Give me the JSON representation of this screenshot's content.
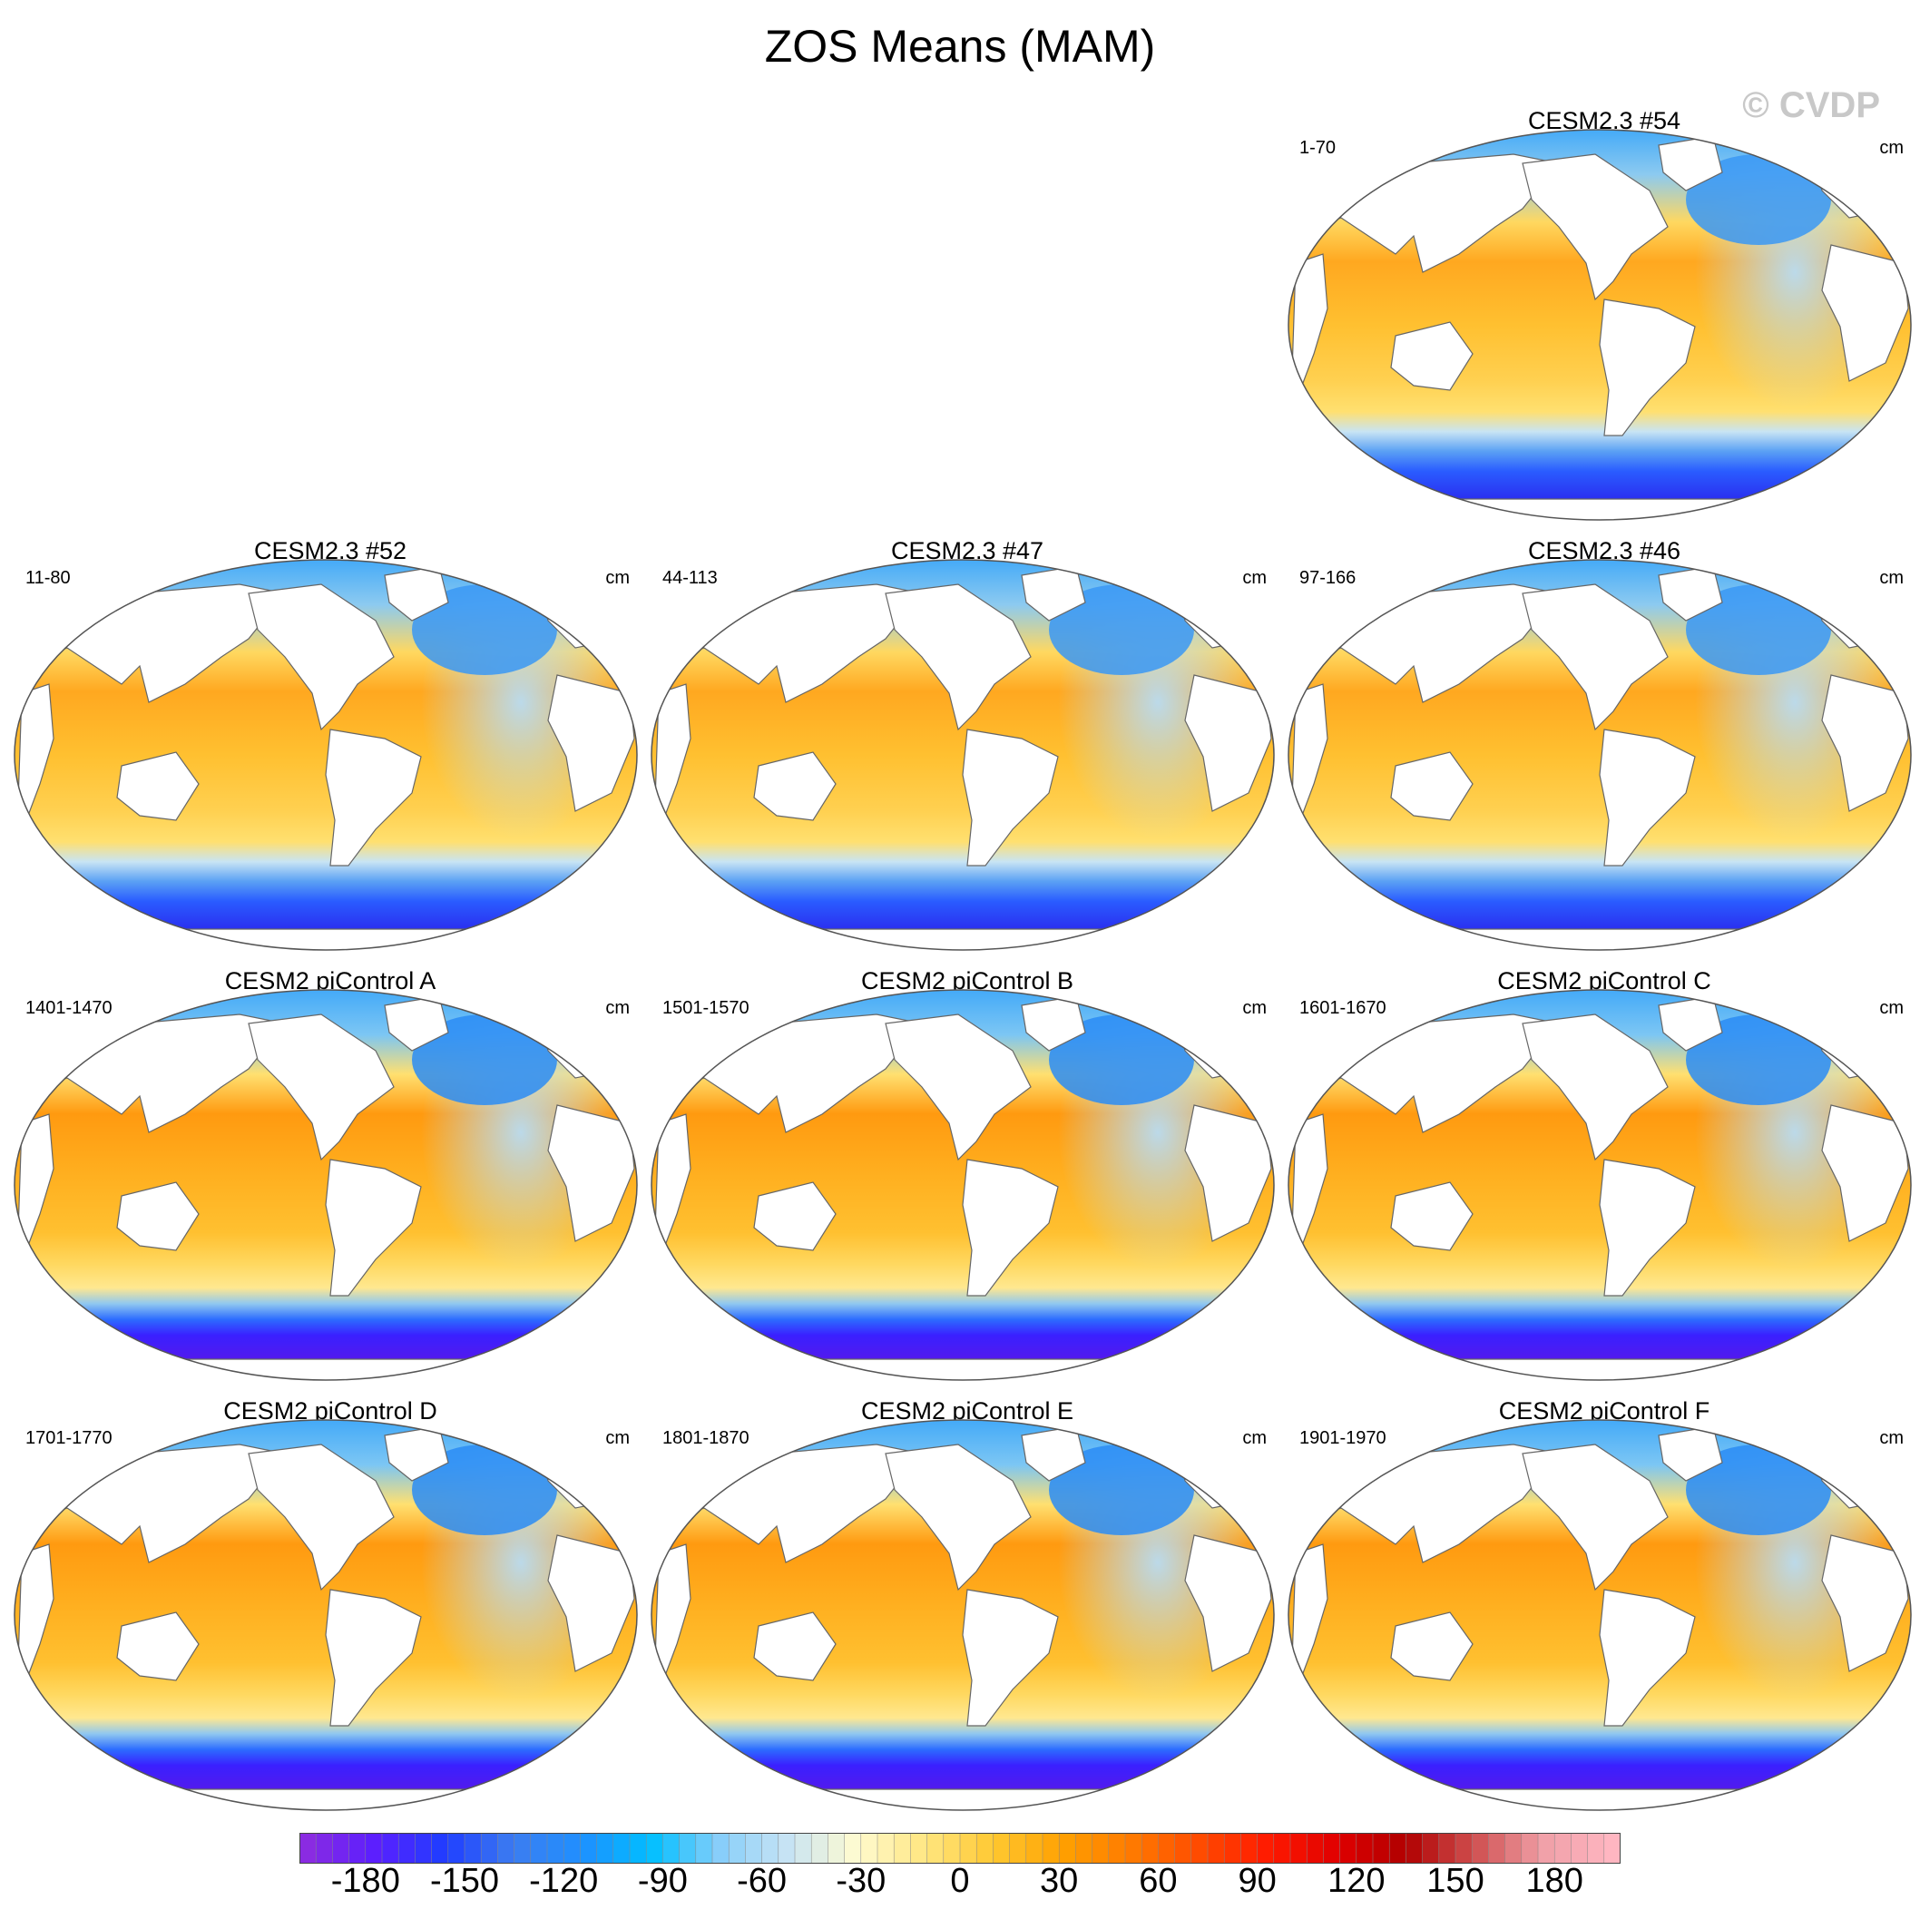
{
  "title": "ZOS Means (MAM)",
  "watermark": "© CVDP",
  "panels": [
    {
      "name": "CESM2.3 #54",
      "period": "1-70",
      "units": "cm",
      "row": 0,
      "col": 2,
      "style": "cesm23"
    },
    {
      "name": "CESM2.3 #52",
      "period": "11-80",
      "units": "cm",
      "row": 1,
      "col": 0,
      "style": "cesm23"
    },
    {
      "name": "CESM2.3 #47",
      "period": "44-113",
      "units": "cm",
      "row": 1,
      "col": 1,
      "style": "cesm23"
    },
    {
      "name": "CESM2.3 #46",
      "period": "97-166",
      "units": "cm",
      "row": 1,
      "col": 2,
      "style": "cesm23"
    },
    {
      "name": "CESM2 piControl A",
      "period": "1401-1470",
      "units": "cm",
      "row": 2,
      "col": 0,
      "style": "picontrol"
    },
    {
      "name": "CESM2 piControl B",
      "period": "1501-1570",
      "units": "cm",
      "row": 2,
      "col": 1,
      "style": "picontrol"
    },
    {
      "name": "CESM2 piControl C",
      "period": "1601-1670",
      "units": "cm",
      "row": 2,
      "col": 2,
      "style": "picontrol"
    },
    {
      "name": "CESM2 piControl D",
      "period": "1701-1770",
      "units": "cm",
      "row": 3,
      "col": 0,
      "style": "picontrol"
    },
    {
      "name": "CESM2 piControl E",
      "period": "1801-1870",
      "units": "cm",
      "row": 3,
      "col": 1,
      "style": "picontrol"
    },
    {
      "name": "CESM2 piControl F",
      "period": "1901-1970",
      "units": "cm",
      "row": 3,
      "col": 2,
      "style": "picontrol"
    }
  ],
  "colorbar": {
    "min": -200,
    "max": 200,
    "step": 5,
    "tick_labels": [
      "-180",
      "-150",
      "-120",
      "-90",
      "-60",
      "-30",
      "0",
      "30",
      "60",
      "90",
      "120",
      "150",
      "180"
    ],
    "tick_values": [
      -180,
      -150,
      -120,
      -90,
      -60,
      -30,
      0,
      30,
      60,
      90,
      120,
      150,
      180
    ],
    "colors": [
      "#8a2be2",
      "#5a1fff",
      "#1f3dff",
      "#3c7df0",
      "#1e90ff",
      "#00bfff",
      "#87cefa",
      "#c8e4f4",
      "#fffbd0",
      "#ffe680",
      "#ffc830",
      "#ffa000",
      "#ff7a00",
      "#ff4a00",
      "#ff1a00",
      "#e00000",
      "#b00000",
      "#d05050",
      "#f0a0a8",
      "#ffb6c1"
    ]
  }
}
